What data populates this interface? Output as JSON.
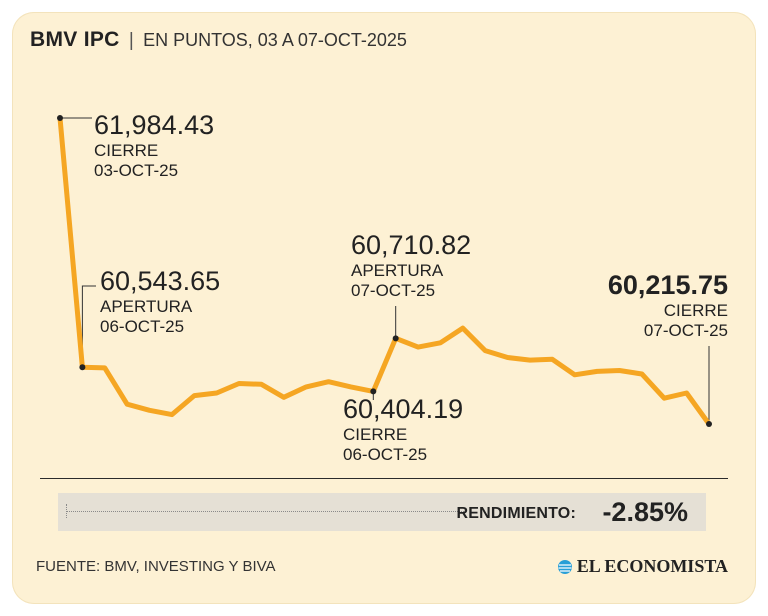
{
  "header": {
    "title": "BMV IPC",
    "separator": "|",
    "subtitle": "EN PUNTOS, 03 A 07-OCT-2025"
  },
  "colors": {
    "background": "#fdf1d4",
    "line": "#f5a623",
    "text": "#222222",
    "yield_box": "#e5e0d5"
  },
  "annotations": {
    "close_oct3": {
      "value": "61,984.43",
      "label": "CIERRE",
      "date": "03-OCT-25"
    },
    "open_oct6": {
      "value": "60,543.65",
      "label": "APERTURA",
      "date": "06-OCT-25"
    },
    "close_oct6": {
      "value": "60,404.19",
      "label": "CIERRE",
      "date": "06-OCT-25"
    },
    "open_oct7": {
      "value": "60,710.82",
      "label": "APERTURA",
      "date": "07-OCT-25"
    },
    "close_oct7": {
      "value": "60,215.75",
      "label": "CIERRE",
      "date": "07-OCT-25"
    }
  },
  "yield": {
    "label": "RENDIMIENTO:",
    "value": "-2.85%"
  },
  "footer": {
    "source": "FUENTE: BMV, INVESTING Y BIVA",
    "brand": "EL ECONOMISTA"
  },
  "chart_data": {
    "type": "line",
    "title": "BMV IPC",
    "subtitle": "EN PUNTOS, 03 A 07-OCT-2025",
    "xlabel": "",
    "ylabel": "",
    "grid": false,
    "ylim": [
      60000,
      62100
    ],
    "series": [
      {
        "values": [
          61984.43,
          60543.65,
          60540,
          60330,
          60295,
          60270,
          60380,
          60395,
          60450,
          60445,
          60370,
          60430,
          60460,
          60430,
          60404.19,
          60710.82,
          60660,
          60685,
          60770,
          60640,
          60600,
          60585,
          60590,
          60500,
          60520,
          60525,
          60505,
          60365,
          60395,
          60215.75
        ]
      }
    ],
    "markers": [
      {
        "index": 0,
        "value": 61984.43,
        "label": "CIERRE 03-OCT-25"
      },
      {
        "index": 1,
        "value": 60543.65,
        "label": "APERTURA 06-OCT-25"
      },
      {
        "index": 14,
        "value": 60404.19,
        "label": "CIERRE 06-OCT-25"
      },
      {
        "index": 15,
        "value": 60710.82,
        "label": "APERTURA 07-OCT-25"
      },
      {
        "index": 29,
        "value": 60215.75,
        "label": "CIERRE 07-OCT-25"
      }
    ]
  }
}
